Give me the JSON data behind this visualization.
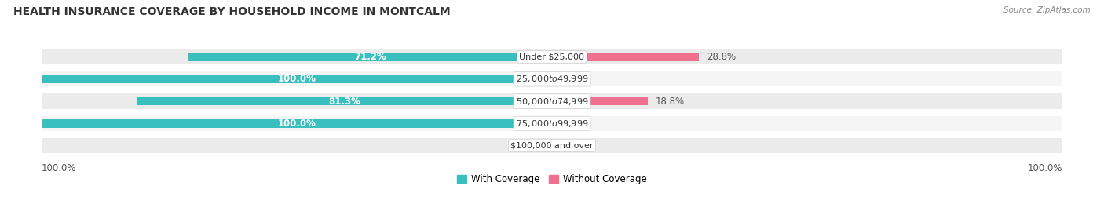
{
  "title": "HEALTH INSURANCE COVERAGE BY HOUSEHOLD INCOME IN MONTCALM",
  "source": "Source: ZipAtlas.com",
  "categories": [
    "Under $25,000",
    "$25,000 to $49,999",
    "$50,000 to $74,999",
    "$75,000 to $99,999",
    "$100,000 and over"
  ],
  "with_coverage": [
    71.2,
    100.0,
    81.3,
    100.0,
    0.0
  ],
  "without_coverage": [
    28.8,
    0.0,
    18.8,
    0.0,
    0.0
  ],
  "color_with": "#3abfbf",
  "color_without": "#f07090",
  "color_with_pale": "#c8ecec",
  "color_without_pale": "#f8c8d8",
  "bg_row_even": "#ebebeb",
  "bg_row_odd": "#f5f5f5",
  "bg_fig": "#ffffff",
  "title_fontsize": 10,
  "source_fontsize": 7.5,
  "bar_label_fontsize": 8.5,
  "cat_label_fontsize": 8,
  "legend_fontsize": 8.5,
  "axis_tick_fontsize": 8.5,
  "max_val": 100.0,
  "left_axis_label": "100.0%",
  "right_axis_label": "100.0%"
}
